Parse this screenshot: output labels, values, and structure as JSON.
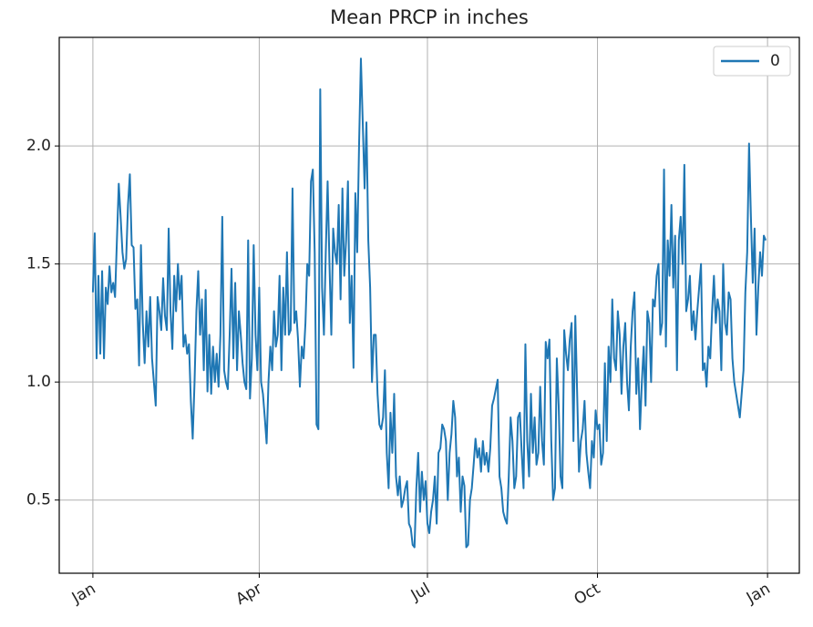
{
  "chart_data": {
    "type": "line",
    "title": "Mean  PRCP in inches",
    "xlim": [
      -18.2,
      382.2
    ],
    "xticks": [
      {
        "value": 0,
        "label": "Jan"
      },
      {
        "value": 90,
        "label": "Apr"
      },
      {
        "value": 181,
        "label": "Jul"
      },
      {
        "value": 273,
        "label": "Oct"
      },
      {
        "value": 365,
        "label": "Jan"
      }
    ],
    "ylim": [
      0.19,
      2.46
    ],
    "yticks": [
      {
        "value": 0.5,
        "label": "0.5"
      },
      {
        "value": 1.0,
        "label": "1.0"
      },
      {
        "value": 1.5,
        "label": "1.5"
      },
      {
        "value": 2.0,
        "label": "2.0"
      }
    ],
    "grid": true,
    "legend": "upper right",
    "series": [
      {
        "name": "0",
        "color": "#1f77b4",
        "values": [
          1.38,
          1.63,
          1.1,
          1.45,
          1.12,
          1.47,
          1.1,
          1.4,
          1.33,
          1.49,
          1.38,
          1.42,
          1.36,
          1.6,
          1.84,
          1.7,
          1.55,
          1.48,
          1.52,
          1.75,
          1.88,
          1.58,
          1.57,
          1.31,
          1.35,
          1.07,
          1.58,
          1.25,
          1.08,
          1.3,
          1.15,
          1.36,
          1.1,
          1.0,
          0.9,
          1.36,
          1.3,
          1.22,
          1.44,
          1.28,
          1.22,
          1.65,
          1.3,
          1.14,
          1.45,
          1.3,
          1.5,
          1.35,
          1.45,
          1.15,
          1.2,
          1.12,
          1.16,
          0.92,
          0.76,
          1.0,
          1.3,
          1.47,
          1.2,
          1.35,
          1.05,
          1.39,
          0.96,
          1.2,
          0.95,
          1.15,
          1.0,
          1.12,
          0.98,
          1.2,
          1.7,
          1.05,
          1.0,
          0.97,
          1.2,
          1.48,
          1.1,
          1.42,
          1.05,
          1.3,
          1.2,
          1.08,
          1.0,
          0.97,
          1.6,
          0.93,
          1.1,
          1.58,
          1.2,
          1.05,
          1.4,
          1.0,
          0.95,
          0.85,
          0.74,
          1.0,
          1.15,
          1.05,
          1.3,
          1.15,
          1.2,
          1.45,
          1.05,
          1.4,
          1.2,
          1.55,
          1.2,
          1.22,
          1.82,
          1.25,
          1.3,
          1.18,
          0.98,
          1.15,
          1.1,
          1.25,
          1.5,
          1.45,
          1.85,
          1.9,
          1.55,
          0.82,
          0.8,
          2.24,
          1.4,
          1.2,
          1.55,
          1.85,
          1.5,
          1.2,
          1.65,
          1.55,
          1.5,
          1.75,
          1.35,
          1.82,
          1.45,
          1.6,
          1.85,
          1.25,
          1.45,
          1.06,
          1.8,
          1.55,
          2.0,
          2.37,
          2.1,
          1.82,
          2.1,
          1.6,
          1.4,
          1.0,
          1.2,
          1.2,
          0.95,
          0.82,
          0.8,
          0.85,
          1.05,
          0.7,
          0.55,
          0.87,
          0.7,
          0.95,
          0.6,
          0.52,
          0.6,
          0.47,
          0.5,
          0.55,
          0.58,
          0.4,
          0.38,
          0.31,
          0.3,
          0.55,
          0.7,
          0.45,
          0.62,
          0.5,
          0.58,
          0.4,
          0.36,
          0.45,
          0.5,
          0.6,
          0.4,
          0.7,
          0.72,
          0.82,
          0.8,
          0.75,
          0.5,
          0.7,
          0.78,
          0.92,
          0.85,
          0.6,
          0.68,
          0.45,
          0.6,
          0.56,
          0.3,
          0.31,
          0.5,
          0.55,
          0.65,
          0.76,
          0.68,
          0.72,
          0.62,
          0.75,
          0.65,
          0.7,
          0.62,
          0.72,
          0.9,
          0.93,
          0.97,
          1.01,
          0.6,
          0.55,
          0.45,
          0.42,
          0.4,
          0.6,
          0.85,
          0.75,
          0.55,
          0.6,
          0.85,
          0.87,
          0.7,
          0.55,
          1.16,
          0.75,
          0.6,
          0.95,
          0.7,
          0.85,
          0.65,
          0.7,
          0.98,
          0.75,
          0.65,
          1.17,
          1.1,
          1.18,
          0.75,
          0.5,
          0.55,
          1.1,
          0.9,
          0.6,
          0.55,
          1.22,
          1.12,
          1.05,
          1.18,
          1.25,
          0.75,
          1.28,
          0.95,
          0.62,
          0.75,
          0.8,
          0.92,
          0.7,
          0.62,
          0.55,
          0.75,
          0.68,
          0.88,
          0.8,
          0.82,
          0.65,
          0.7,
          1.08,
          0.75,
          1.15,
          1.0,
          1.35,
          1.1,
          1.05,
          1.3,
          1.2,
          0.95,
          1.15,
          1.25,
          1.0,
          0.88,
          1.15,
          1.3,
          1.38,
          0.95,
          1.1,
          0.8,
          1.0,
          1.15,
          0.9,
          1.3,
          1.25,
          1.0,
          1.35,
          1.32,
          1.45,
          1.5,
          1.2,
          1.25,
          1.9,
          1.15,
          1.6,
          1.45,
          1.75,
          1.4,
          1.62,
          1.05,
          1.6,
          1.7,
          1.5,
          1.92,
          1.3,
          1.35,
          1.45,
          1.22,
          1.3,
          1.18,
          1.3,
          1.4,
          1.5,
          1.05,
          1.08,
          0.98,
          1.15,
          1.1,
          1.3,
          1.45,
          1.25,
          1.35,
          1.3,
          1.05,
          1.5,
          1.25,
          1.2,
          1.38,
          1.35,
          1.1,
          1.0,
          0.95,
          0.9,
          0.85,
          0.95,
          1.05,
          1.38,
          1.55,
          2.01,
          1.7,
          1.42,
          1.65,
          1.2,
          1.4,
          1.55,
          1.45,
          1.62,
          1.6
        ]
      }
    ]
  }
}
